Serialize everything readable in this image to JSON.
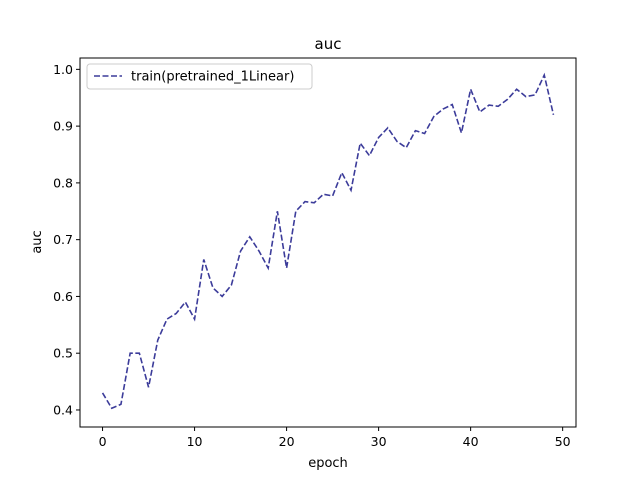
{
  "chart_data": {
    "type": "line",
    "title": "auc",
    "xlabel": "epoch",
    "ylabel": "auc",
    "xlim": [
      -2.45,
      51.45
    ],
    "ylim": [
      0.37,
      1.02
    ],
    "xticks": [
      0,
      10,
      20,
      30,
      40,
      50
    ],
    "yticks": [
      0.4,
      0.5,
      0.6,
      0.7,
      0.8,
      0.9,
      1.0
    ],
    "xtick_labels": [
      "0",
      "10",
      "20",
      "30",
      "40",
      "50"
    ],
    "ytick_labels": [
      "0.4",
      "0.5",
      "0.6",
      "0.7",
      "0.8",
      "0.9",
      "1.0"
    ],
    "grid": false,
    "legend_position": "top-left",
    "series": [
      {
        "name": "train(pretrained_1Linear)",
        "color": "#3c3c9a",
        "linestyle": "dashed",
        "x": [
          0,
          1,
          2,
          3,
          4,
          5,
          6,
          7,
          8,
          9,
          10,
          11,
          12,
          13,
          14,
          15,
          16,
          17,
          18,
          19,
          20,
          21,
          22,
          23,
          24,
          25,
          26,
          27,
          28,
          29,
          30,
          31,
          32,
          33,
          34,
          35,
          36,
          37,
          38,
          39,
          40,
          41,
          42,
          43,
          44,
          45,
          46,
          47,
          48,
          49
        ],
        "values": [
          0.43,
          0.403,
          0.41,
          0.5,
          0.5,
          0.44,
          0.523,
          0.56,
          0.57,
          0.59,
          0.56,
          0.665,
          0.615,
          0.6,
          0.62,
          0.68,
          0.705,
          0.68,
          0.65,
          0.75,
          0.65,
          0.75,
          0.767,
          0.765,
          0.78,
          0.777,
          0.818,
          0.787,
          0.87,
          0.848,
          0.88,
          0.897,
          0.873,
          0.862,
          0.892,
          0.887,
          0.917,
          0.93,
          0.938,
          0.888,
          0.965,
          0.925,
          0.937,
          0.935,
          0.947,
          0.965,
          0.952,
          0.955,
          0.99,
          0.92
        ]
      }
    ]
  }
}
